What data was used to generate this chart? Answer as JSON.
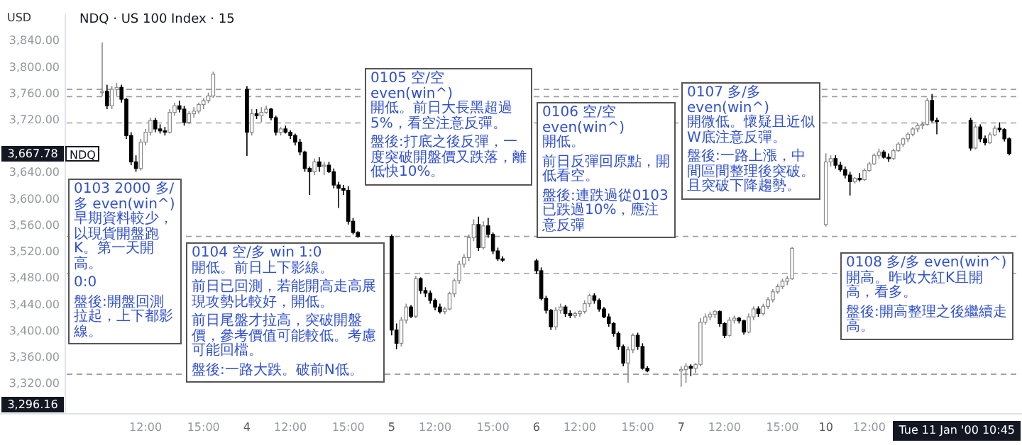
{
  "chart_data": {
    "type": "candlestick",
    "title": "NDQ · US 100 Index · 15",
    "ylabel": "USD",
    "categories": [
      null,
      null,
      null,
      null,
      null,
      null,
      null,
      null,
      null,
      "12:00",
      null,
      null,
      null,
      null,
      null,
      null,
      null,
      null,
      null,
      null,
      null,
      "15:00",
      null,
      null,
      null,
      null,
      null,
      null,
      null,
      null,
      "4",
      null,
      null,
      null,
      null,
      null,
      null,
      null,
      null,
      "12:00",
      null,
      null,
      null,
      null,
      null,
      null,
      null,
      null,
      null,
      null,
      null,
      "15:00",
      null,
      null,
      null,
      null,
      null,
      null,
      null,
      null,
      "5",
      null,
      null,
      null,
      null,
      null,
      null,
      null,
      null,
      "12:00",
      null,
      null,
      null,
      null,
      null,
      null,
      null,
      null,
      null,
      null,
      null,
      "15:00",
      null,
      null,
      null,
      null,
      null,
      null,
      null,
      null,
      "6",
      null,
      null,
      null,
      null,
      null,
      null,
      null,
      null,
      "12:00",
      null,
      null,
      null,
      null,
      null,
      null,
      null,
      null,
      null,
      null,
      null,
      "15:00",
      null,
      null,
      null,
      null,
      null,
      null,
      null,
      null,
      "7",
      null,
      null,
      null,
      null,
      null,
      null,
      null,
      null,
      "12:00",
      null,
      null,
      null,
      null,
      null,
      null,
      null,
      null,
      null,
      null,
      null,
      "15:00",
      null,
      null,
      null,
      null,
      null,
      null,
      null,
      null,
      "10",
      null,
      null,
      null,
      null,
      null,
      null,
      null,
      null,
      "12:00",
      null,
      null,
      null,
      null,
      null,
      null,
      null,
      null,
      null,
      null,
      null,
      null,
      null,
      null,
      null,
      null,
      null,
      null,
      null,
      null,
      null,
      null,
      null,
      null,
      null,
      null,
      null,
      null,
      null
    ],
    "ohlc": [
      [
        3760,
        3836,
        3755,
        3762
      ],
      [
        3762,
        3772,
        3735,
        3740
      ],
      [
        3740,
        3770,
        3735,
        3765
      ],
      [
        3765,
        3775,
        3755,
        3768
      ],
      [
        3768,
        3772,
        3745,
        3750
      ],
      [
        3750,
        3752,
        3690,
        3695
      ],
      [
        3695,
        3700,
        3650,
        3655
      ],
      [
        3655,
        3665,
        3640,
        3645
      ],
      [
        3645,
        3690,
        3642,
        3685
      ],
      [
        3685,
        3705,
        3680,
        3700
      ],
      [
        3700,
        3722,
        3695,
        3718
      ],
      [
        3718,
        3722,
        3700,
        3705
      ],
      [
        3705,
        3712,
        3698,
        3702
      ],
      [
        3702,
        3708,
        3695,
        3700
      ],
      [
        3700,
        3735,
        3698,
        3730
      ],
      [
        3730,
        3745,
        3725,
        3740
      ],
      [
        3740,
        3748,
        3730,
        3735
      ],
      [
        3735,
        3740,
        3710,
        3715
      ],
      [
        3715,
        3732,
        3712,
        3728
      ],
      [
        3728,
        3738,
        3722,
        3732
      ],
      [
        3732,
        3745,
        3728,
        3742
      ],
      [
        3742,
        3752,
        3735,
        3748
      ],
      [
        3748,
        3760,
        3744,
        3755
      ],
      [
        3755,
        3792,
        3752,
        3788
      ],
      null,
      null,
      null,
      null,
      null,
      null,
      [
        3765,
        3770,
        3664,
        3700
      ],
      [
        3700,
        3735,
        3695,
        3728
      ],
      [
        3728,
        3735,
        3720,
        3725
      ],
      [
        3725,
        3738,
        3715,
        3730
      ],
      [
        3730,
        3740,
        3728,
        3735
      ],
      [
        3735,
        3737,
        3718,
        3722
      ],
      [
        3722,
        3725,
        3695,
        3700
      ],
      [
        3700,
        3708,
        3695,
        3705
      ],
      [
        3705,
        3710,
        3698,
        3700
      ],
      [
        3700,
        3703,
        3690,
        3695
      ],
      [
        3695,
        3698,
        3680,
        3685
      ],
      [
        3685,
        3690,
        3665,
        3670
      ],
      [
        3670,
        3672,
        3640,
        3645
      ],
      [
        3645,
        3648,
        3605,
        3640
      ],
      [
        3640,
        3660,
        3635,
        3655
      ],
      [
        3655,
        3662,
        3640,
        3648
      ],
      [
        3648,
        3655,
        3635,
        3650
      ],
      [
        3650,
        3655,
        3638,
        3640
      ],
      [
        3640,
        3645,
        3615,
        3620
      ],
      [
        3620,
        3625,
        3585,
        3615
      ],
      [
        3615,
        3620,
        3605,
        3612
      ],
      [
        3612,
        3618,
        3560,
        3565
      ],
      [
        3565,
        3570,
        3545,
        3548
      ],
      [
        3548,
        3550,
        3540,
        3542
      ],
      null,
      null,
      null,
      null,
      null,
      null,
      [
        3542,
        3545,
        3392,
        3400
      ],
      [
        3400,
        3410,
        3371,
        3380
      ],
      [
        3380,
        3420,
        3375,
        3415
      ],
      [
        3415,
        3440,
        3410,
        3435
      ],
      [
        3435,
        3438,
        3418,
        3421
      ],
      [
        3421,
        3482,
        3418,
        3478
      ],
      [
        3478,
        3480,
        3455,
        3460
      ],
      [
        3460,
        3465,
        3450,
        3456
      ],
      [
        3456,
        3460,
        3440,
        3445
      ],
      [
        3445,
        3448,
        3430,
        3435
      ],
      [
        3435,
        3440,
        3425,
        3428
      ],
      [
        3428,
        3435,
        3424,
        3432
      ],
      [
        3432,
        3458,
        3430,
        3455
      ],
      [
        3455,
        3478,
        3450,
        3475
      ],
      [
        3475,
        3505,
        3470,
        3500
      ],
      [
        3500,
        3515,
        3495,
        3510
      ],
      [
        3510,
        3545,
        3505,
        3540
      ],
      [
        3540,
        3568,
        3535,
        3560
      ],
      [
        3560,
        3572,
        3520,
        3525
      ],
      [
        3525,
        3565,
        3522,
        3558
      ],
      [
        3558,
        3570,
        3540,
        3545
      ],
      [
        3545,
        3548,
        3515,
        3520
      ],
      [
        3520,
        3525,
        3505,
        3508
      ],
      [
        3508,
        3512,
        3503,
        3506
      ],
      null,
      null,
      null,
      null,
      null,
      null,
      [
        3505,
        3508,
        3485,
        3490
      ],
      [
        3490,
        3495,
        3445,
        3448
      ],
      [
        3448,
        3452,
        3425,
        3430
      ],
      [
        3430,
        3432,
        3400,
        3405
      ],
      [
        3405,
        3435,
        3400,
        3430
      ],
      [
        3430,
        3440,
        3425,
        3435
      ],
      [
        3435,
        3438,
        3420,
        3425
      ],
      [
        3425,
        3430,
        3418,
        3422
      ],
      [
        3422,
        3428,
        3418,
        3425
      ],
      [
        3425,
        3430,
        3420,
        3428
      ],
      [
        3428,
        3445,
        3425,
        3440
      ],
      [
        3440,
        3455,
        3435,
        3452
      ],
      [
        3452,
        3456,
        3440,
        3445
      ],
      [
        3445,
        3448,
        3428,
        3432
      ],
      [
        3432,
        3435,
        3418,
        3420
      ],
      [
        3420,
        3425,
        3405,
        3410
      ],
      [
        3410,
        3412,
        3390,
        3395
      ],
      [
        3395,
        3398,
        3370,
        3375
      ],
      [
        3375,
        3378,
        3345,
        3350
      ],
      [
        3350,
        3375,
        3320,
        3370
      ],
      [
        3370,
        3395,
        3365,
        3392
      ],
      [
        3392,
        3396,
        3370,
        3375
      ],
      [
        3375,
        3380,
        3340,
        3342
      ],
      [
        3342,
        3345,
        3336,
        3338
      ],
      null,
      null,
      null,
      null,
      null,
      null,
      [
        3338,
        3345,
        3314,
        3340
      ],
      [
        3340,
        3350,
        3320,
        3345
      ],
      [
        3345,
        3348,
        3330,
        3342
      ],
      [
        3342,
        3350,
        3335,
        3348
      ],
      [
        3348,
        3418,
        3345,
        3412
      ],
      [
        3412,
        3425,
        3408,
        3420
      ],
      [
        3420,
        3428,
        3415,
        3424
      ],
      [
        3424,
        3430,
        3418,
        3428
      ],
      [
        3428,
        3430,
        3405,
        3410
      ],
      [
        3410,
        3412,
        3388,
        3392
      ],
      [
        3392,
        3420,
        3390,
        3415
      ],
      [
        3415,
        3422,
        3410,
        3418
      ],
      [
        3418,
        3420,
        3410,
        3414
      ],
      [
        3414,
        3416,
        3393,
        3397
      ],
      [
        3397,
        3425,
        3395,
        3420
      ],
      [
        3420,
        3436,
        3415,
        3432
      ],
      [
        3432,
        3436,
        3420,
        3425
      ],
      [
        3425,
        3440,
        3422,
        3436
      ],
      [
        3436,
        3450,
        3432,
        3446
      ],
      [
        3446,
        3462,
        3442,
        3458
      ],
      [
        3458,
        3470,
        3455,
        3466
      ],
      [
        3466,
        3478,
        3462,
        3474
      ],
      [
        3474,
        3482,
        3468,
        3478
      ],
      [
        3478,
        3526,
        3476,
        3524
      ],
      null,
      null,
      null,
      null,
      null,
      null,
      [
        3560,
        3668,
        3557,
        3655
      ],
      [
        3655,
        3665,
        3648,
        3660
      ],
      [
        3660,
        3665,
        3645,
        3650
      ],
      [
        3650,
        3655,
        3640,
        3643
      ],
      [
        3643,
        3648,
        3630,
        3635
      ],
      [
        3635,
        3640,
        3604,
        3625
      ],
      [
        3625,
        3632,
        3622,
        3630
      ],
      [
        3630,
        3638,
        3625,
        3628
      ],
      [
        3628,
        3645,
        3626,
        3642
      ],
      [
        3642,
        3655,
        3640,
        3652
      ],
      [
        3652,
        3668,
        3650,
        3665
      ],
      [
        3665,
        3675,
        3660,
        3670
      ],
      [
        3670,
        3673,
        3660,
        3662
      ],
      [
        3662,
        3668,
        3655,
        3660
      ],
      [
        3660,
        3675,
        3658,
        3672
      ],
      [
        3672,
        3685,
        3670,
        3682
      ],
      [
        3682,
        3692,
        3678,
        3690
      ],
      [
        3690,
        3700,
        3685,
        3697
      ],
      [
        3697,
        3708,
        3694,
        3705
      ],
      [
        3705,
        3714,
        3700,
        3710
      ],
      [
        3710,
        3716,
        3705,
        3712
      ],
      [
        3712,
        3752,
        3710,
        3748
      ],
      [
        3748,
        3758,
        3715,
        3718
      ],
      [
        3718,
        3722,
        3697,
        3716
      ],
      null,
      null,
      null,
      null,
      null,
      null,
      [
        3718,
        3722,
        3672,
        3676
      ],
      [
        3676,
        3712,
        3674,
        3708
      ],
      [
        3708,
        3712,
        3685,
        3690
      ],
      [
        3690,
        3695,
        3680,
        3684
      ],
      [
        3684,
        3700,
        3682,
        3696
      ],
      [
        3696,
        3710,
        3694,
        3706
      ],
      [
        3706,
        3715,
        3700,
        3704
      ],
      [
        3704,
        3706,
        3686,
        3690
      ],
      [
        3690,
        3692,
        3665,
        3667.78
      ]
    ],
    "ylim": [
      3273,
      3879
    ],
    "yticks": [
      {
        "value": 3320,
        "label": "3,320.00"
      },
      {
        "value": 3360,
        "label": "3,360.00"
      },
      {
        "value": 3400,
        "label": "3,400.00"
      },
      {
        "value": 3440,
        "label": "3,440.00"
      },
      {
        "value": 3480,
        "label": "3,480.00"
      },
      {
        "value": 3520,
        "label": "3,520.00"
      },
      {
        "value": 3560,
        "label": "3,560.00"
      },
      {
        "value": 3600,
        "label": "3,600.00"
      },
      {
        "value": 3640,
        "label": "3,640.00"
      },
      {
        "value": 3720,
        "label": "3,720.00"
      },
      {
        "value": 3760,
        "label": "3,760.00"
      },
      {
        "value": 3800,
        "label": "3,800.00"
      },
      {
        "value": 3840,
        "label": "3,840.00"
      }
    ],
    "ref_lines": [
      {
        "axis": "y",
        "value": 3765,
        "color": "#9e9e9e",
        "line_style": "dashed"
      },
      {
        "axis": "y",
        "value": 3754,
        "color": "#9e9e9e",
        "line_style": "dashed"
      },
      {
        "axis": "y",
        "value": 3714,
        "color": "#9e9e9e",
        "line_style": "dashed"
      },
      {
        "axis": "y",
        "value": 3542,
        "color": "#9e9e9e",
        "line_style": "dashed"
      },
      {
        "axis": "y",
        "value": 3486,
        "color": "#9e9e9e",
        "line_style": "dashed"
      },
      {
        "axis": "y",
        "value": 3333,
        "color": "#9e9e9e",
        "line_style": "dashed"
      }
    ],
    "annotations": [
      "0103 2000 多/多 even(win^)",
      "早期資料較少，以現貨開盤跑K。第一天開高。",
      "0:0",
      "盤後:開盤回測拉起，上下都影線。",
      "0104 空/多 win 1:0",
      "開低。前日上下影線。",
      "前日已回測，若能開高走高展現攻勢比較好，開低。",
      "前日尾盤才拉高，突破開盤價，參考價值可能較低。考慮可能回檔。",
      "盤後:一路大跌。破前N低。",
      "0105 空/空 even(win^)",
      "開低。前日大長黑超過5%，看空注意反彈。",
      "盤後:打底之後反彈，一度突破開盤價又跌落，離低快10%。",
      "0106 空/空 even(win^)",
      "開低。",
      "前日反彈回原點，開低看空。",
      "盤後:連跌過從0103已跌過10%，應注意反彈",
      "0107 多/多 even(win^)",
      "開微低。懷疑且近似W底注意反彈。",
      "盤後:一路上漲，中間區間整理後突破。且突破下降趨勢。",
      "0108 多/多 even(win^)",
      "開高。昨收大紅K且開高，看多。",
      "盤後:開高整理之後繼續走高。",
      "3,667.78",
      "NDQ",
      "3,296.16",
      "Tue 11 Jan '00 10:45"
    ]
  }
}
